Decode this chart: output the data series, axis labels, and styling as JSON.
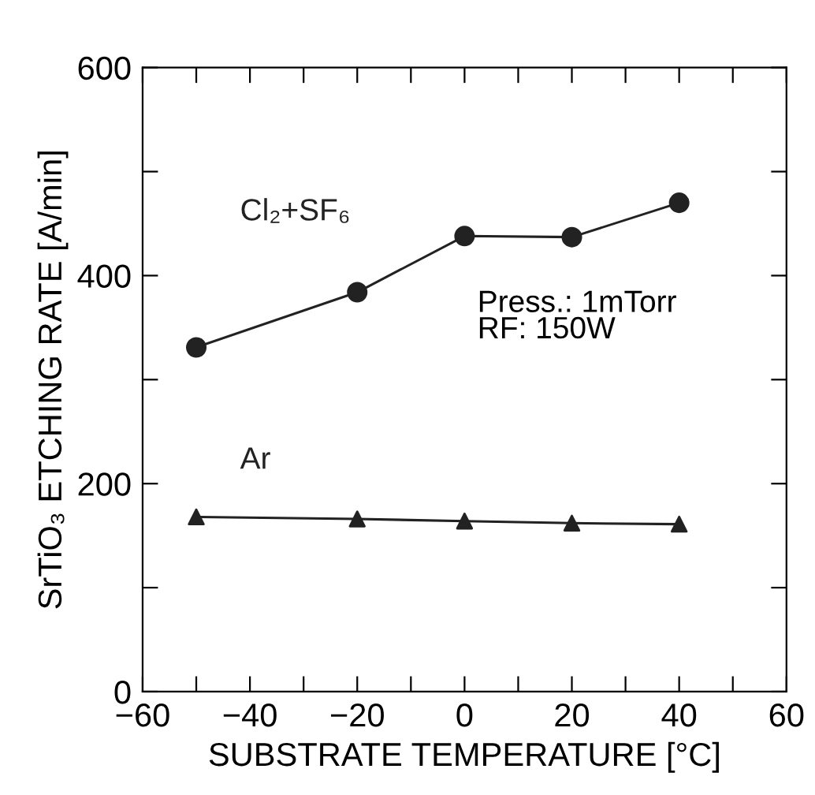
{
  "chart_data": {
    "type": "line",
    "xlabel": "SUBSTRATE TEMPERATURE [°C]",
    "ylabel": "SrTiO₃ ETCHING RATE [A/min]",
    "x": [
      -50,
      -20,
      0,
      20,
      40
    ],
    "series": [
      {
        "name": "Cl₂+SF₆",
        "color": "#222222",
        "marker": "circle",
        "values": [
          331,
          384,
          438,
          437,
          470
        ]
      },
      {
        "name": "Ar",
        "color": "#222222",
        "marker": "triangle",
        "values": [
          168,
          166,
          164,
          162,
          161
        ]
      }
    ],
    "annotations": [
      "Press.: 1mTorr\nRF: 150W"
    ],
    "xlim": [
      -60,
      60
    ],
    "xticks": [
      -60,
      {
        "value": -50,
        "label": null
      },
      -40,
      {
        "value": -30,
        "label": null
      },
      -20,
      {
        "value": -10,
        "label": null
      },
      0,
      {
        "value": 10,
        "label": null
      },
      20,
      {
        "value": 30,
        "label": null
      },
      40,
      {
        "value": 50,
        "label": null
      },
      60
    ],
    "ylim": [
      0,
      600
    ],
    "yticks": [
      0,
      {
        "value": 100,
        "label": null
      },
      200,
      {
        "value": 300,
        "label": null
      },
      400,
      {
        "value": 500,
        "label": null
      },
      600
    ],
    "grid": false,
    "legend": false,
    "line_style": "solid"
  }
}
